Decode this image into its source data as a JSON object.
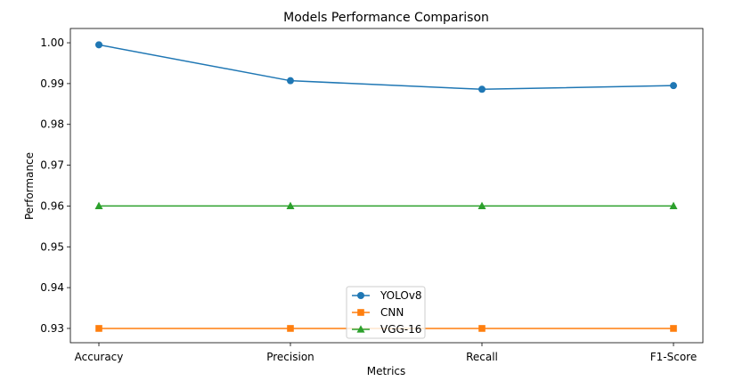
{
  "chart_data": {
    "type": "line",
    "title": "Models Performance Comparison",
    "xlabel": "Metrics",
    "ylabel": "Performance",
    "categories": [
      "Accuracy",
      "Precision",
      "Recall",
      "F1-Score"
    ],
    "ylim": [
      0.9265,
      1.0035
    ],
    "yticks": [
      0.93,
      0.94,
      0.95,
      0.96,
      0.97,
      0.98,
      0.99,
      1.0
    ],
    "ytick_labels": [
      "0.93",
      "0.94",
      "0.95",
      "0.96",
      "0.97",
      "0.98",
      "0.99",
      "1.00"
    ],
    "grid": false,
    "legend_position": "lower-center",
    "series": [
      {
        "name": "YOLOv8",
        "values": [
          0.9995,
          0.9907,
          0.9886,
          0.9895
        ],
        "color": "#1f77b4",
        "marker": "circle"
      },
      {
        "name": "CNN",
        "values": [
          0.93,
          0.93,
          0.93,
          0.93
        ],
        "color": "#ff7f0e",
        "marker": "square"
      },
      {
        "name": "VGG-16",
        "values": [
          0.96,
          0.96,
          0.96,
          0.96
        ],
        "color": "#2ca02c",
        "marker": "triangle"
      }
    ]
  }
}
